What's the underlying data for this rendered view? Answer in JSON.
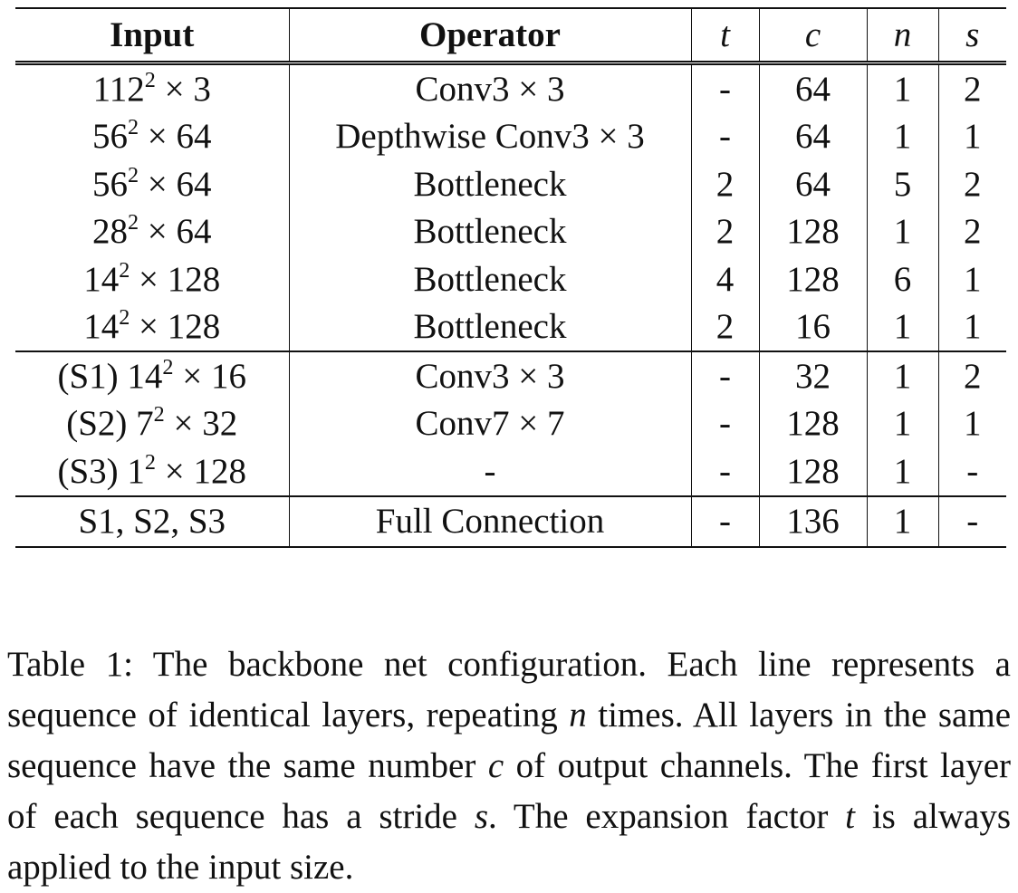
{
  "table": {
    "headers": {
      "input": "Input",
      "operator": "Operator",
      "t": "t",
      "c": "c",
      "n": "n",
      "s": "s"
    },
    "groups": [
      {
        "rows": [
          {
            "input_base": "112",
            "input_exp": "2",
            "input_rest": " × 3",
            "operator": "Conv3 × 3",
            "t": "-",
            "c": "64",
            "n": "1",
            "s": "2"
          },
          {
            "input_base": "56",
            "input_exp": "2",
            "input_rest": " × 64",
            "operator": "Depthwise Conv3 × 3",
            "t": "-",
            "c": "64",
            "n": "1",
            "s": "1"
          },
          {
            "input_base": "56",
            "input_exp": "2",
            "input_rest": " × 64",
            "operator": "Bottleneck",
            "t": "2",
            "c": "64",
            "n": "5",
            "s": "2"
          },
          {
            "input_base": "28",
            "input_exp": "2",
            "input_rest": " × 64",
            "operator": "Bottleneck",
            "t": "2",
            "c": "128",
            "n": "1",
            "s": "2"
          },
          {
            "input_base": "14",
            "input_exp": "2",
            "input_rest": " × 128",
            "operator": "Bottleneck",
            "t": "4",
            "c": "128",
            "n": "6",
            "s": "1"
          },
          {
            "input_base": "14",
            "input_exp": "2",
            "input_rest": " × 128",
            "operator": "Bottleneck",
            "t": "2",
            "c": "16",
            "n": "1",
            "s": "1"
          }
        ]
      },
      {
        "rows": [
          {
            "input_base": "(S1) 14",
            "input_exp": "2",
            "input_rest": " × 16",
            "operator": "Conv3 × 3",
            "t": "-",
            "c": "32",
            "n": "1",
            "s": "2"
          },
          {
            "input_base": "(S2) 7",
            "input_exp": "2",
            "input_rest": " × 32",
            "operator": "Conv7 × 7",
            "t": "-",
            "c": "128",
            "n": "1",
            "s": "1"
          },
          {
            "input_base": "(S3) 1",
            "input_exp": "2",
            "input_rest": " × 128",
            "operator": "-",
            "t": "-",
            "c": "128",
            "n": "1",
            "s": "-"
          }
        ]
      },
      {
        "rows": [
          {
            "input_base": "S1, S2, S3",
            "input_exp": "",
            "input_rest": "",
            "operator": "Full Connection",
            "t": "-",
            "c": "136",
            "n": "1",
            "s": "-"
          }
        ]
      }
    ]
  },
  "caption": {
    "p1": "Table 1: The backbone net configuration. Each line represents a sequence of identical layers, repeating ",
    "m1": "n",
    "p2": " times. All layers in the same sequence have the same number ",
    "m2": "c",
    "p3": " of output channels. The first layer of each sequence has a stride ",
    "m3": "s",
    "p4": ". The expansion factor ",
    "m4": "t",
    "p5": " is always applied to the input size."
  }
}
